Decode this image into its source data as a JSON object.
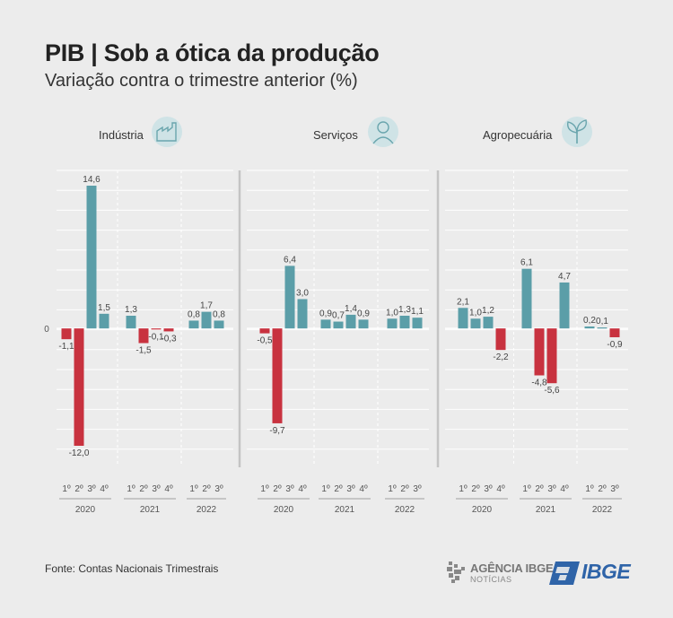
{
  "title": "PIB | Sob a ótica da produção",
  "subtitle": "Variação contra o trimestre anterior (%)",
  "source": "Fonte: Contas Nacionais Trimestrais",
  "logos": {
    "agencia_line1": "AGÊNCIA IBGE",
    "agencia_line2": "NOTÍCIAS",
    "ibge": "IBGE"
  },
  "colors": {
    "positive": "#5b9ea8",
    "negative": "#c8323f",
    "icon_bg": "#cfe3e6",
    "icon_fg": "#6aa5ad"
  },
  "chart_data": [
    {
      "type": "bar",
      "title": "Indústria",
      "icon": "factory-icon",
      "zero_label": "0",
      "categories": [
        "1º",
        "2º",
        "3º",
        "4º",
        "1º",
        "2º",
        "3º",
        "4º",
        "1º",
        "2º",
        "3º"
      ],
      "groups": [
        {
          "label": "2020",
          "size": 4
        },
        {
          "label": "2021",
          "size": 4
        },
        {
          "label": "2022",
          "size": 3
        }
      ],
      "values": [
        -1.1,
        -12.0,
        14.6,
        1.5,
        1.3,
        -1.5,
        -0.1,
        -0.3,
        0.8,
        1.7,
        0.8
      ],
      "value_labels": [
        "-1,1",
        "-12,0",
        "14,6",
        "1,5",
        "1,3",
        "-1,5",
        "-0,1",
        "-0,3",
        "0,8",
        "1,7",
        "0,8"
      ],
      "ylim": [
        -12.0,
        14.6
      ]
    },
    {
      "type": "bar",
      "title": "Serviços",
      "icon": "person-icon",
      "categories": [
        "1º",
        "2º",
        "3º",
        "4º",
        "1º",
        "2º",
        "3º",
        "4º",
        "1º",
        "2º",
        "3º"
      ],
      "groups": [
        {
          "label": "2020",
          "size": 4
        },
        {
          "label": "2021",
          "size": 4
        },
        {
          "label": "2022",
          "size": 3
        }
      ],
      "values": [
        -0.5,
        -9.7,
        6.4,
        3.0,
        0.9,
        0.7,
        1.4,
        0.9,
        1.0,
        1.3,
        1.1
      ],
      "value_labels": [
        "-0,5",
        "-9,7",
        "6,4",
        "3,0",
        "0,9",
        "0,7",
        "1,4",
        "0,9",
        "1,0",
        "1,3",
        "1,1"
      ],
      "ylim": [
        -12.0,
        14.6
      ]
    },
    {
      "type": "bar",
      "title": "Agropecuária",
      "icon": "plant-icon",
      "categories": [
        "1º",
        "2º",
        "3º",
        "4º",
        "1º",
        "2º",
        "3º",
        "4º",
        "1º",
        "2º",
        "3º"
      ],
      "groups": [
        {
          "label": "2020",
          "size": 4
        },
        {
          "label": "2021",
          "size": 4
        },
        {
          "label": "2022",
          "size": 3
        }
      ],
      "values": [
        2.1,
        1.0,
        1.2,
        -2.2,
        6.1,
        -4.8,
        -5.6,
        4.7,
        0.2,
        0.1,
        -0.9
      ],
      "value_labels": [
        "2,1",
        "1,0",
        "1,2",
        "-2,2",
        "6,1",
        "-4,8",
        "-5,6",
        "4,7",
        "0,2",
        "0,1",
        "-0,9"
      ],
      "ylim": [
        -12.0,
        14.6
      ]
    }
  ]
}
